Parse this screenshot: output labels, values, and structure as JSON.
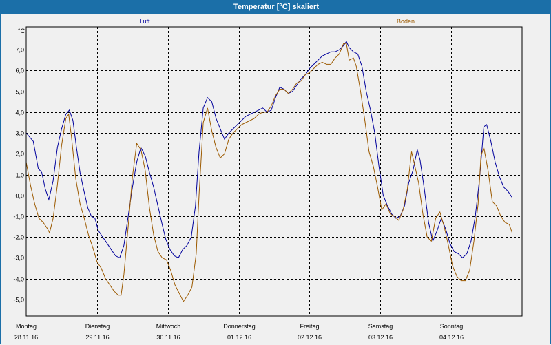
{
  "window": {
    "title": "Temperatur [°C] skaliert"
  },
  "colors": {
    "luft": "#00009c",
    "boden": "#9c5a00",
    "grid": "#000000",
    "titlebar": "#1b6fa8"
  },
  "chart_data": {
    "type": "line",
    "title": "Temperatur [°C] skaliert",
    "ylabel": "°C",
    "ylim": [
      -5.8,
      8.1
    ],
    "xlim": [
      0,
      7
    ],
    "grid": true,
    "yticks": [
      7,
      6,
      5,
      4,
      3,
      2,
      1,
      0,
      -1,
      -2,
      -3,
      -4,
      -5
    ],
    "ytick_labels": [
      "7,0",
      "6,0",
      "5,0",
      "4,0",
      "3,0",
      "2,0",
      "1,0",
      "0,0",
      "-1,0",
      "-2,0",
      "-3,0",
      "-4,0",
      "-5,0"
    ],
    "x_day_ticks": [
      {
        "pos": 0,
        "day": "Montag",
        "date": "28.11.16"
      },
      {
        "pos": 1,
        "day": "Dienstag",
        "date": "29.11.16"
      },
      {
        "pos": 2,
        "day": "Mittwoch",
        "date": "30.11.16"
      },
      {
        "pos": 3,
        "day": "Donnerstag",
        "date": "01.12.16"
      },
      {
        "pos": 4,
        "day": "Freitag",
        "date": "02.12.16"
      },
      {
        "pos": 5,
        "day": "Samstag",
        "date": "03.12.16"
      },
      {
        "pos": 6,
        "day": "Sonntag",
        "date": "04.12.16"
      }
    ],
    "series": [
      {
        "name": "Luft",
        "color": "#00009c",
        "points": [
          [
            0.0,
            3.0
          ],
          [
            0.1,
            2.6
          ],
          [
            0.17,
            1.3
          ],
          [
            0.22,
            1.1
          ],
          [
            0.27,
            0.3
          ],
          [
            0.32,
            -0.2
          ],
          [
            0.38,
            0.7
          ],
          [
            0.44,
            2.3
          ],
          [
            0.5,
            3.2
          ],
          [
            0.56,
            3.9
          ],
          [
            0.61,
            4.1
          ],
          [
            0.66,
            3.6
          ],
          [
            0.71,
            2.3
          ],
          [
            0.76,
            1.1
          ],
          [
            0.81,
            0.3
          ],
          [
            0.87,
            -0.6
          ],
          [
            0.92,
            -1.0
          ],
          [
            0.97,
            -1.1
          ],
          [
            1.02,
            -1.7
          ],
          [
            1.08,
            -2.0
          ],
          [
            1.14,
            -2.3
          ],
          [
            1.2,
            -2.6
          ],
          [
            1.26,
            -2.9
          ],
          [
            1.32,
            -3.0
          ],
          [
            1.38,
            -2.4
          ],
          [
            1.44,
            -1.0
          ],
          [
            1.5,
            0.4
          ],
          [
            1.56,
            1.6
          ],
          [
            1.62,
            2.3
          ],
          [
            1.68,
            1.9
          ],
          [
            1.74,
            1.1
          ],
          [
            1.8,
            0.4
          ],
          [
            1.86,
            -0.5
          ],
          [
            1.92,
            -1.4
          ],
          [
            1.97,
            -2.1
          ],
          [
            2.03,
            -2.6
          ],
          [
            2.09,
            -2.9
          ],
          [
            2.15,
            -3.0
          ],
          [
            2.21,
            -2.6
          ],
          [
            2.27,
            -2.4
          ],
          [
            2.33,
            -2.0
          ],
          [
            2.39,
            -0.5
          ],
          [
            2.44,
            2.1
          ],
          [
            2.5,
            4.2
          ],
          [
            2.56,
            4.7
          ],
          [
            2.62,
            4.5
          ],
          [
            2.68,
            3.7
          ],
          [
            2.74,
            3.2
          ],
          [
            2.8,
            2.7
          ],
          [
            2.86,
            3.0
          ],
          [
            2.92,
            3.2
          ],
          [
            2.98,
            3.4
          ],
          [
            3.04,
            3.6
          ],
          [
            3.1,
            3.8
          ],
          [
            3.16,
            3.9
          ],
          [
            3.22,
            4.0
          ],
          [
            3.28,
            4.1
          ],
          [
            3.34,
            4.2
          ],
          [
            3.4,
            4.0
          ],
          [
            3.46,
            4.1
          ],
          [
            3.52,
            4.7
          ],
          [
            3.58,
            5.2
          ],
          [
            3.64,
            5.1
          ],
          [
            3.7,
            4.9
          ],
          [
            3.76,
            5.0
          ],
          [
            3.82,
            5.3
          ],
          [
            3.88,
            5.6
          ],
          [
            3.94,
            5.8
          ],
          [
            4.0,
            6.1
          ],
          [
            4.06,
            6.3
          ],
          [
            4.12,
            6.5
          ],
          [
            4.18,
            6.7
          ],
          [
            4.24,
            6.8
          ],
          [
            4.3,
            6.9
          ],
          [
            4.36,
            6.9
          ],
          [
            4.42,
            7.0
          ],
          [
            4.48,
            7.2
          ],
          [
            4.52,
            7.4
          ],
          [
            4.56,
            7.1
          ],
          [
            4.62,
            6.9
          ],
          [
            4.68,
            6.8
          ],
          [
            4.74,
            6.2
          ],
          [
            4.8,
            5.0
          ],
          [
            4.86,
            4.1
          ],
          [
            4.92,
            3.0
          ],
          [
            4.98,
            1.4
          ],
          [
            5.04,
            0.0
          ],
          [
            5.1,
            -0.5
          ],
          [
            5.16,
            -0.9
          ],
          [
            5.22,
            -1.1
          ],
          [
            5.28,
            -1.0
          ],
          [
            5.34,
            -0.5
          ],
          [
            5.4,
            0.6
          ],
          [
            5.46,
            1.2
          ],
          [
            5.52,
            2.2
          ],
          [
            5.56,
            1.7
          ],
          [
            5.62,
            0.3
          ],
          [
            5.68,
            -1.3
          ],
          [
            5.74,
            -2.2
          ],
          [
            5.8,
            -1.7
          ],
          [
            5.86,
            -1.1
          ],
          [
            5.92,
            -1.6
          ],
          [
            5.98,
            -2.3
          ],
          [
            6.04,
            -2.7
          ],
          [
            6.1,
            -2.8
          ],
          [
            6.16,
            -3.0
          ],
          [
            6.22,
            -2.8
          ],
          [
            6.28,
            -2.2
          ],
          [
            6.34,
            -1.0
          ],
          [
            6.4,
            0.8
          ],
          [
            6.46,
            3.3
          ],
          [
            6.5,
            3.4
          ],
          [
            6.56,
            2.6
          ],
          [
            6.62,
            1.6
          ],
          [
            6.68,
            0.9
          ],
          [
            6.74,
            0.4
          ],
          [
            6.8,
            0.2
          ],
          [
            6.86,
            -0.1
          ]
        ]
      },
      {
        "name": "Boden",
        "color": "#9c5a00",
        "points": [
          [
            0.0,
            1.6
          ],
          [
            0.06,
            0.5
          ],
          [
            0.12,
            -0.4
          ],
          [
            0.18,
            -1.1
          ],
          [
            0.24,
            -1.3
          ],
          [
            0.3,
            -1.6
          ],
          [
            0.33,
            -1.8
          ],
          [
            0.38,
            -1.1
          ],
          [
            0.44,
            0.5
          ],
          [
            0.5,
            2.4
          ],
          [
            0.56,
            3.7
          ],
          [
            0.6,
            3.9
          ],
          [
            0.64,
            2.8
          ],
          [
            0.7,
            0.8
          ],
          [
            0.76,
            -0.4
          ],
          [
            0.82,
            -1.1
          ],
          [
            0.88,
            -1.9
          ],
          [
            0.94,
            -2.5
          ],
          [
            1.0,
            -3.2
          ],
          [
            1.06,
            -3.5
          ],
          [
            1.12,
            -4.0
          ],
          [
            1.18,
            -4.3
          ],
          [
            1.24,
            -4.6
          ],
          [
            1.3,
            -4.8
          ],
          [
            1.34,
            -4.8
          ],
          [
            1.38,
            -3.8
          ],
          [
            1.44,
            -1.5
          ],
          [
            1.5,
            0.9
          ],
          [
            1.56,
            2.5
          ],
          [
            1.62,
            2.2
          ],
          [
            1.68,
            1.2
          ],
          [
            1.74,
            -0.6
          ],
          [
            1.8,
            -1.9
          ],
          [
            1.86,
            -2.7
          ],
          [
            1.92,
            -3.0
          ],
          [
            1.98,
            -3.1
          ],
          [
            2.04,
            -3.6
          ],
          [
            2.1,
            -4.3
          ],
          [
            2.16,
            -4.7
          ],
          [
            2.22,
            -5.1
          ],
          [
            2.28,
            -4.8
          ],
          [
            2.34,
            -4.4
          ],
          [
            2.4,
            -2.8
          ],
          [
            2.44,
            0.0
          ],
          [
            2.5,
            3.5
          ],
          [
            2.56,
            4.2
          ],
          [
            2.62,
            3.1
          ],
          [
            2.68,
            2.3
          ],
          [
            2.74,
            1.8
          ],
          [
            2.8,
            2.0
          ],
          [
            2.86,
            2.7
          ],
          [
            2.92,
            3.0
          ],
          [
            2.98,
            3.2
          ],
          [
            3.04,
            3.4
          ],
          [
            3.1,
            3.5
          ],
          [
            3.16,
            3.6
          ],
          [
            3.22,
            3.7
          ],
          [
            3.28,
            3.9
          ],
          [
            3.34,
            4.0
          ],
          [
            3.4,
            4.0
          ],
          [
            3.46,
            4.3
          ],
          [
            3.52,
            4.8
          ],
          [
            3.58,
            5.1
          ],
          [
            3.64,
            5.1
          ],
          [
            3.7,
            4.9
          ],
          [
            3.76,
            5.1
          ],
          [
            3.82,
            5.4
          ],
          [
            3.88,
            5.5
          ],
          [
            3.94,
            5.8
          ],
          [
            4.0,
            5.9
          ],
          [
            4.06,
            6.1
          ],
          [
            4.12,
            6.3
          ],
          [
            4.18,
            6.4
          ],
          [
            4.24,
            6.3
          ],
          [
            4.3,
            6.3
          ],
          [
            4.36,
            6.6
          ],
          [
            4.42,
            6.8
          ],
          [
            4.48,
            7.3
          ],
          [
            4.52,
            7.3
          ],
          [
            4.56,
            6.5
          ],
          [
            4.62,
            6.6
          ],
          [
            4.66,
            6.2
          ],
          [
            4.72,
            5.0
          ],
          [
            4.78,
            3.6
          ],
          [
            4.84,
            2.1
          ],
          [
            4.9,
            1.4
          ],
          [
            4.96,
            0.4
          ],
          [
            5.02,
            -0.7
          ],
          [
            5.08,
            -0.4
          ],
          [
            5.14,
            -0.9
          ],
          [
            5.2,
            -1.0
          ],
          [
            5.26,
            -1.2
          ],
          [
            5.32,
            -0.7
          ],
          [
            5.38,
            0.3
          ],
          [
            5.44,
            2.1
          ],
          [
            5.48,
            1.5
          ],
          [
            5.54,
            0.6
          ],
          [
            5.6,
            -0.9
          ],
          [
            5.66,
            -2.0
          ],
          [
            5.72,
            -2.2
          ],
          [
            5.78,
            -1.1
          ],
          [
            5.84,
            -0.8
          ],
          [
            5.9,
            -1.5
          ],
          [
            5.96,
            -2.4
          ],
          [
            6.02,
            -3.4
          ],
          [
            6.08,
            -3.9
          ],
          [
            6.14,
            -4.1
          ],
          [
            6.2,
            -4.1
          ],
          [
            6.26,
            -3.6
          ],
          [
            6.32,
            -2.2
          ],
          [
            6.38,
            -0.4
          ],
          [
            6.42,
            1.9
          ],
          [
            6.46,
            2.3
          ],
          [
            6.52,
            1.2
          ],
          [
            6.58,
            -0.3
          ],
          [
            6.64,
            -0.5
          ],
          [
            6.7,
            -1.0
          ],
          [
            6.76,
            -1.3
          ],
          [
            6.82,
            -1.4
          ],
          [
            6.86,
            -1.8
          ]
        ]
      }
    ]
  }
}
